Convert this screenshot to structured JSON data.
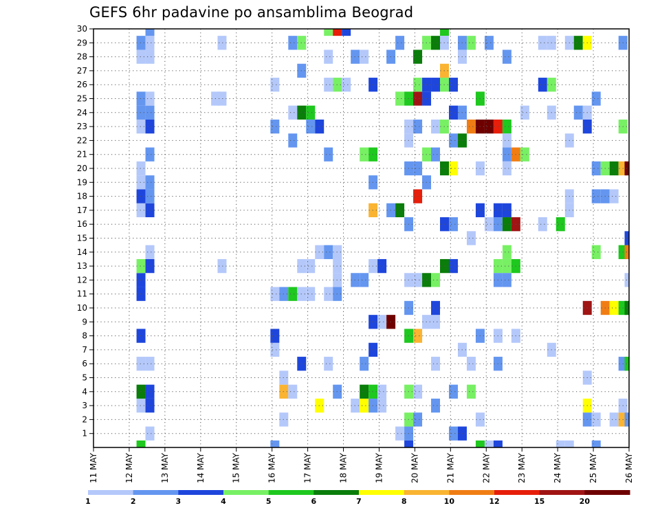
{
  "chart_data": {
    "type": "heatmap",
    "title": "GEFS 6hr padavine po ansamblima Beograd",
    "xlabel": "",
    "ylabel": "",
    "x_ticks": [
      "11 MAY",
      "12 MAY",
      "13 MAY",
      "14 MAY",
      "15 MAY",
      "16 MAY",
      "17 MAY",
      "18 MAY",
      "19 MAY",
      "20 MAY",
      "21 MAY",
      "22 MAY",
      "23 MAY",
      "24 MAY",
      "25 MAY",
      "26 MAY"
    ],
    "xlim": [
      0,
      15
    ],
    "y_ticks": [
      1,
      2,
      3,
      4,
      5,
      6,
      7,
      8,
      9,
      10,
      11,
      12,
      13,
      14,
      15,
      16,
      17,
      18,
      19,
      20,
      21,
      22,
      23,
      24,
      25,
      26,
      27,
      28,
      29,
      30
    ],
    "ylim": [
      0,
      30
    ],
    "grid": true,
    "colorbar": {
      "labels": [
        "1",
        "2",
        "3",
        "4",
        "5",
        "6",
        "7",
        "8",
        "10",
        "12",
        "15",
        "20"
      ],
      "colors": [
        "#b4c8fa",
        "#6496f0",
        "#1e46dc",
        "#78f064",
        "#1ec81e",
        "#0a7d0a",
        "#ffff00",
        "#fab432",
        "#f07d14",
        "#e61e0a",
        "#a01414",
        "#6e0000"
      ]
    },
    "cells_note": "x = forecast time in days from 11 MAY, y = ensemble member row, v = precipitation class index into colorbar",
    "cells": [
      {
        "x": 1.33,
        "y": 0,
        "v": 4
      },
      {
        "x": 1.58,
        "y": 1,
        "v": 0
      },
      {
        "x": 1.33,
        "y": 3,
        "v": 0
      },
      {
        "x": 1.58,
        "y": 3,
        "v": 2
      },
      {
        "x": 1.33,
        "y": 4,
        "v": 5
      },
      {
        "x": 1.58,
        "y": 4,
        "v": 2
      },
      {
        "x": 1.33,
        "y": 6,
        "v": 0
      },
      {
        "x": 1.58,
        "y": 6,
        "v": 0
      },
      {
        "x": 1.33,
        "y": 8,
        "v": 2
      },
      {
        "x": 1.33,
        "y": 11,
        "v": 2
      },
      {
        "x": 1.33,
        "y": 12,
        "v": 2
      },
      {
        "x": 1.33,
        "y": 13,
        "v": 3
      },
      {
        "x": 1.58,
        "y": 13,
        "v": 2
      },
      {
        "x": 1.58,
        "y": 14,
        "v": 0
      },
      {
        "x": 1.33,
        "y": 17,
        "v": 0
      },
      {
        "x": 1.58,
        "y": 17,
        "v": 2
      },
      {
        "x": 1.33,
        "y": 18,
        "v": 2
      },
      {
        "x": 1.58,
        "y": 18,
        "v": 1
      },
      {
        "x": 1.33,
        "y": 19,
        "v": 0
      },
      {
        "x": 1.58,
        "y": 19,
        "v": 1
      },
      {
        "x": 1.33,
        "y": 20,
        "v": 0
      },
      {
        "x": 1.58,
        "y": 21,
        "v": 1
      },
      {
        "x": 1.33,
        "y": 23,
        "v": 0
      },
      {
        "x": 1.58,
        "y": 23,
        "v": 2
      },
      {
        "x": 1.33,
        "y": 24,
        "v": 1
      },
      {
        "x": 1.58,
        "y": 24,
        "v": 1
      },
      {
        "x": 1.33,
        "y": 25,
        "v": 1
      },
      {
        "x": 1.58,
        "y": 25,
        "v": 0
      },
      {
        "x": 1.33,
        "y": 28,
        "v": 0
      },
      {
        "x": 1.58,
        "y": 28,
        "v": 0
      },
      {
        "x": 1.33,
        "y": 29,
        "v": 1
      },
      {
        "x": 1.58,
        "y": 29,
        "v": 0
      },
      {
        "x": 1.58,
        "y": 30,
        "v": 1
      },
      {
        "x": 3.6,
        "y": 13,
        "v": 0
      },
      {
        "x": 3.6,
        "y": 29,
        "v": 0
      },
      {
        "x": 3.42,
        "y": 25,
        "v": 0
      },
      {
        "x": 3.6,
        "y": 25,
        "v": 0
      },
      {
        "x": 5.08,
        "y": 0,
        "v": 1
      },
      {
        "x": 5.08,
        "y": 7,
        "v": 0
      },
      {
        "x": 5.08,
        "y": 8,
        "v": 2
      },
      {
        "x": 5.08,
        "y": 11,
        "v": 0
      },
      {
        "x": 5.33,
        "y": 11,
        "v": 1
      },
      {
        "x": 5.58,
        "y": 11,
        "v": 4
      },
      {
        "x": 5.83,
        "y": 11,
        "v": 0
      },
      {
        "x": 6.08,
        "y": 11,
        "v": 0
      },
      {
        "x": 5.33,
        "y": 2,
        "v": 0
      },
      {
        "x": 5.33,
        "y": 4,
        "v": 7
      },
      {
        "x": 5.58,
        "y": 4,
        "v": 0
      },
      {
        "x": 5.33,
        "y": 5,
        "v": 0
      },
      {
        "x": 5.83,
        "y": 6,
        "v": 2
      },
      {
        "x": 5.08,
        "y": 23,
        "v": 1
      },
      {
        "x": 5.08,
        "y": 26,
        "v": 0
      },
      {
        "x": 5.58,
        "y": 22,
        "v": 1
      },
      {
        "x": 5.58,
        "y": 24,
        "v": 0
      },
      {
        "x": 5.83,
        "y": 24,
        "v": 5
      },
      {
        "x": 6.08,
        "y": 24,
        "v": 4
      },
      {
        "x": 5.58,
        "y": 29,
        "v": 1
      },
      {
        "x": 5.83,
        "y": 29,
        "v": 3
      },
      {
        "x": 5.83,
        "y": 27,
        "v": 1
      },
      {
        "x": 5.83,
        "y": 13,
        "v": 0
      },
      {
        "x": 6.08,
        "y": 13,
        "v": 0
      },
      {
        "x": 6.08,
        "y": 23,
        "v": 1
      },
      {
        "x": 6.33,
        "y": 23,
        "v": 2
      },
      {
        "x": 6.33,
        "y": 3,
        "v": 6
      },
      {
        "x": 6.58,
        "y": 6,
        "v": 0
      },
      {
        "x": 6.58,
        "y": 11,
        "v": 0
      },
      {
        "x": 6.83,
        "y": 11,
        "v": 1
      },
      {
        "x": 6.83,
        "y": 12,
        "v": 0
      },
      {
        "x": 6.83,
        "y": 13,
        "v": 0
      },
      {
        "x": 6.33,
        "y": 14,
        "v": 0
      },
      {
        "x": 6.58,
        "y": 14,
        "v": 1
      },
      {
        "x": 6.83,
        "y": 14,
        "v": 0
      },
      {
        "x": 6.58,
        "y": 21,
        "v": 1
      },
      {
        "x": 6.58,
        "y": 26,
        "v": 0
      },
      {
        "x": 6.83,
        "y": 26,
        "v": 3
      },
      {
        "x": 7.08,
        "y": 26,
        "v": 0
      },
      {
        "x": 6.58,
        "y": 28,
        "v": 0
      },
      {
        "x": 6.58,
        "y": 30,
        "v": 3
      },
      {
        "x": 6.83,
        "y": 30,
        "v": 9
      },
      {
        "x": 7.08,
        "y": 30,
        "v": 2
      },
      {
        "x": 6.83,
        "y": 4,
        "v": 1
      },
      {
        "x": 7.33,
        "y": 28,
        "v": 1
      },
      {
        "x": 7.58,
        "y": 28,
        "v": 0
      },
      {
        "x": 7.33,
        "y": 3,
        "v": 0
      },
      {
        "x": 7.58,
        "y": 3,
        "v": 6
      },
      {
        "x": 7.83,
        "y": 3,
        "v": 1
      },
      {
        "x": 8.08,
        "y": 3,
        "v": 0
      },
      {
        "x": 7.58,
        "y": 4,
        "v": 5
      },
      {
        "x": 7.83,
        "y": 4,
        "v": 4
      },
      {
        "x": 8.08,
        "y": 4,
        "v": 0
      },
      {
        "x": 7.58,
        "y": 6,
        "v": 1
      },
      {
        "x": 7.83,
        "y": 7,
        "v": 2
      },
      {
        "x": 7.83,
        "y": 9,
        "v": 2
      },
      {
        "x": 8.08,
        "y": 9,
        "v": 0
      },
      {
        "x": 7.33,
        "y": 12,
        "v": 1
      },
      {
        "x": 7.58,
        "y": 12,
        "v": 1
      },
      {
        "x": 7.83,
        "y": 13,
        "v": 0
      },
      {
        "x": 8.08,
        "y": 13,
        "v": 2
      },
      {
        "x": 7.83,
        "y": 17,
        "v": 7
      },
      {
        "x": 7.83,
        "y": 19,
        "v": 1
      },
      {
        "x": 7.58,
        "y": 21,
        "v": 3
      },
      {
        "x": 7.83,
        "y": 21,
        "v": 4
      },
      {
        "x": 7.83,
        "y": 26,
        "v": 2
      },
      {
        "x": 8.33,
        "y": 28,
        "v": 1
      },
      {
        "x": 8.58,
        "y": 29,
        "v": 1
      },
      {
        "x": 8.33,
        "y": 9,
        "v": 11
      },
      {
        "x": 8.33,
        "y": 17,
        "v": 1
      },
      {
        "x": 8.58,
        "y": 17,
        "v": 5
      },
      {
        "x": 8.58,
        "y": 1,
        "v": 0
      },
      {
        "x": 8.83,
        "y": 1,
        "v": 1
      },
      {
        "x": 8.83,
        "y": 0,
        "v": 2
      },
      {
        "x": 8.83,
        "y": 2,
        "v": 3
      },
      {
        "x": 9.08,
        "y": 2,
        "v": 1
      },
      {
        "x": 8.83,
        "y": 4,
        "v": 3
      },
      {
        "x": 9.08,
        "y": 4,
        "v": 0
      },
      {
        "x": 8.83,
        "y": 8,
        "v": 4
      },
      {
        "x": 9.08,
        "y": 8,
        "v": 7
      },
      {
        "x": 8.83,
        "y": 10,
        "v": 1
      },
      {
        "x": 8.83,
        "y": 12,
        "v": 0
      },
      {
        "x": 9.08,
        "y": 12,
        "v": 0
      },
      {
        "x": 9.33,
        "y": 12,
        "v": 5
      },
      {
        "x": 9.58,
        "y": 12,
        "v": 3
      },
      {
        "x": 8.83,
        "y": 16,
        "v": 1
      },
      {
        "x": 9.08,
        "y": 18,
        "v": 9
      },
      {
        "x": 9.33,
        "y": 19,
        "v": 1
      },
      {
        "x": 8.83,
        "y": 20,
        "v": 1
      },
      {
        "x": 9.08,
        "y": 20,
        "v": 1
      },
      {
        "x": 8.83,
        "y": 22,
        "v": 0
      },
      {
        "x": 8.83,
        "y": 23,
        "v": 0
      },
      {
        "x": 9.08,
        "y": 23,
        "v": 1
      },
      {
        "x": 8.58,
        "y": 25,
        "v": 3
      },
      {
        "x": 8.83,
        "y": 25,
        "v": 4
      },
      {
        "x": 9.08,
        "y": 25,
        "v": 10
      },
      {
        "x": 9.33,
        "y": 25,
        "v": 2
      },
      {
        "x": 9.08,
        "y": 26,
        "v": 3
      },
      {
        "x": 9.33,
        "y": 26,
        "v": 2
      },
      {
        "x": 9.58,
        "y": 26,
        "v": 2
      },
      {
        "x": 9.08,
        "y": 28,
        "v": 5
      },
      {
        "x": 9.33,
        "y": 29,
        "v": 3
      },
      {
        "x": 9.58,
        "y": 29,
        "v": 5
      },
      {
        "x": 9.33,
        "y": 9,
        "v": 0
      },
      {
        "x": 9.58,
        "y": 9,
        "v": 0
      },
      {
        "x": 9.58,
        "y": 10,
        "v": 2
      },
      {
        "x": 9.58,
        "y": 3,
        "v": 1
      },
      {
        "x": 9.58,
        "y": 6,
        "v": 0
      },
      {
        "x": 9.33,
        "y": 21,
        "v": 3
      },
      {
        "x": 9.58,
        "y": 21,
        "v": 1
      },
      {
        "x": 9.58,
        "y": 23,
        "v": 0
      },
      {
        "x": 9.83,
        "y": 23,
        "v": 3
      },
      {
        "x": 9.83,
        "y": 27,
        "v": 7
      },
      {
        "x": 9.83,
        "y": 26,
        "v": 3
      },
      {
        "x": 9.83,
        "y": 30,
        "v": 4
      },
      {
        "x": 9.83,
        "y": 29,
        "v": 0
      },
      {
        "x": 9.83,
        "y": 20,
        "v": 5
      },
      {
        "x": 10.08,
        "y": 20,
        "v": 6
      },
      {
        "x": 9.83,
        "y": 16,
        "v": 2
      },
      {
        "x": 10.08,
        "y": 16,
        "v": 1
      },
      {
        "x": 9.83,
        "y": 13,
        "v": 5
      },
      {
        "x": 10.08,
        "y": 13,
        "v": 2
      },
      {
        "x": 10.08,
        "y": 1,
        "v": 1
      },
      {
        "x": 10.33,
        "y": 1,
        "v": 2
      },
      {
        "x": 10.08,
        "y": 4,
        "v": 1
      },
      {
        "x": 10.08,
        "y": 22,
        "v": 1
      },
      {
        "x": 10.33,
        "y": 22,
        "v": 5
      },
      {
        "x": 10.08,
        "y": 24,
        "v": 2
      },
      {
        "x": 10.33,
        "y": 24,
        "v": 1
      },
      {
        "x": 10.08,
        "y": 26,
        "v": 2
      },
      {
        "x": 10.33,
        "y": 29,
        "v": 1
      },
      {
        "x": 10.58,
        "y": 29,
        "v": 3
      },
      {
        "x": 10.33,
        "y": 28,
        "v": 0
      },
      {
        "x": 10.33,
        "y": 7,
        "v": 0
      },
      {
        "x": 10.58,
        "y": 15,
        "v": 0
      },
      {
        "x": 10.58,
        "y": 4,
        "v": 3
      },
      {
        "x": 10.58,
        "y": 6,
        "v": 0
      },
      {
        "x": 10.58,
        "y": 23,
        "v": 8
      },
      {
        "x": 10.83,
        "y": 23,
        "v": 11
      },
      {
        "x": 11.08,
        "y": 23,
        "v": 11
      },
      {
        "x": 11.33,
        "y": 23,
        "v": 9
      },
      {
        "x": 11.58,
        "y": 23,
        "v": 4
      },
      {
        "x": 10.83,
        "y": 8,
        "v": 1
      },
      {
        "x": 10.83,
        "y": 17,
        "v": 2
      },
      {
        "x": 10.83,
        "y": 25,
        "v": 4
      },
      {
        "x": 10.83,
        "y": 20,
        "v": 0
      },
      {
        "x": 10.83,
        "y": 2,
        "v": 0
      },
      {
        "x": 10.83,
        "y": 0,
        "v": 4
      },
      {
        "x": 11.08,
        "y": 0,
        "v": 0
      },
      {
        "x": 11.33,
        "y": 0,
        "v": 2
      },
      {
        "x": 11.08,
        "y": 16,
        "v": 0
      },
      {
        "x": 11.33,
        "y": 16,
        "v": 1
      },
      {
        "x": 11.08,
        "y": 29,
        "v": 1
      },
      {
        "x": 11.33,
        "y": 17,
        "v": 2
      },
      {
        "x": 11.58,
        "y": 17,
        "v": 2
      },
      {
        "x": 11.33,
        "y": 13,
        "v": 3
      },
      {
        "x": 11.58,
        "y": 13,
        "v": 3
      },
      {
        "x": 11.83,
        "y": 13,
        "v": 4
      },
      {
        "x": 11.58,
        "y": 14,
        "v": 3
      },
      {
        "x": 11.33,
        "y": 12,
        "v": 1
      },
      {
        "x": 11.58,
        "y": 12,
        "v": 1
      },
      {
        "x": 11.33,
        "y": 8,
        "v": 0
      },
      {
        "x": 11.83,
        "y": 8,
        "v": 0
      },
      {
        "x": 11.33,
        "y": 6,
        "v": 1
      },
      {
        "x": 11.58,
        "y": 16,
        "v": 5
      },
      {
        "x": 11.83,
        "y": 16,
        "v": 10
      },
      {
        "x": 11.58,
        "y": 21,
        "v": 1
      },
      {
        "x": 11.83,
        "y": 21,
        "v": 8
      },
      {
        "x": 12.08,
        "y": 21,
        "v": 3
      },
      {
        "x": 11.58,
        "y": 20,
        "v": 0
      },
      {
        "x": 11.58,
        "y": 28,
        "v": 1
      },
      {
        "x": 11.58,
        "y": 22,
        "v": 0
      },
      {
        "x": 12.08,
        "y": 24,
        "v": 0
      },
      {
        "x": 12.58,
        "y": 26,
        "v": 2
      },
      {
        "x": 12.83,
        "y": 26,
        "v": 3
      },
      {
        "x": 12.58,
        "y": 29,
        "v": 0
      },
      {
        "x": 12.83,
        "y": 29,
        "v": 0
      },
      {
        "x": 12.83,
        "y": 24,
        "v": 0
      },
      {
        "x": 12.58,
        "y": 16,
        "v": 0
      },
      {
        "x": 12.83,
        "y": 7,
        "v": 0
      },
      {
        "x": 13.08,
        "y": 16,
        "v": 4
      },
      {
        "x": 13.08,
        "y": 0,
        "v": 0
      },
      {
        "x": 13.33,
        "y": 0,
        "v": 0
      },
      {
        "x": 13.33,
        "y": 29,
        "v": 0
      },
      {
        "x": 13.58,
        "y": 29,
        "v": 5
      },
      {
        "x": 13.83,
        "y": 29,
        "v": 6
      },
      {
        "x": 13.33,
        "y": 17,
        "v": 0
      },
      {
        "x": 13.33,
        "y": 18,
        "v": 0
      },
      {
        "x": 13.33,
        "y": 22,
        "v": 0
      },
      {
        "x": 13.58,
        "y": 24,
        "v": 1
      },
      {
        "x": 13.83,
        "y": 24,
        "v": 0
      },
      {
        "x": 13.83,
        "y": 23,
        "v": 2
      },
      {
        "x": 13.83,
        "y": 5,
        "v": 0
      },
      {
        "x": 13.83,
        "y": 3,
        "v": 6
      },
      {
        "x": 13.83,
        "y": 2,
        "v": 1
      },
      {
        "x": 14.08,
        "y": 2,
        "v": 0
      },
      {
        "x": 14.58,
        "y": 2,
        "v": 0
      },
      {
        "x": 14.83,
        "y": 2,
        "v": 7
      },
      {
        "x": 13.83,
        "y": 10,
        "v": 10
      },
      {
        "x": 14.08,
        "y": 14,
        "v": 3
      },
      {
        "x": 14.08,
        "y": 18,
        "v": 1
      },
      {
        "x": 14.33,
        "y": 18,
        "v": 1
      },
      {
        "x": 14.58,
        "y": 18,
        "v": 0
      },
      {
        "x": 14.08,
        "y": 20,
        "v": 1
      },
      {
        "x": 14.33,
        "y": 20,
        "v": 3
      },
      {
        "x": 14.58,
        "y": 20,
        "v": 5
      },
      {
        "x": 14.83,
        "y": 20,
        "v": 7
      },
      {
        "x": 15.0,
        "y": 20,
        "v": 11
      },
      {
        "x": 14.08,
        "y": 25,
        "v": 1
      },
      {
        "x": 14.08,
        "y": 0,
        "v": 1
      },
      {
        "x": 14.33,
        "y": 10,
        "v": 8
      },
      {
        "x": 14.58,
        "y": 10,
        "v": 6
      },
      {
        "x": 14.83,
        "y": 10,
        "v": 4
      },
      {
        "x": 15.0,
        "y": 10,
        "v": 5
      },
      {
        "x": 14.83,
        "y": 14,
        "v": 4
      },
      {
        "x": 15.0,
        "y": 14,
        "v": 8
      },
      {
        "x": 15.0,
        "y": 15,
        "v": 2
      },
      {
        "x": 14.83,
        "y": 6,
        "v": 1
      },
      {
        "x": 15.0,
        "y": 6,
        "v": 4
      },
      {
        "x": 14.83,
        "y": 3,
        "v": 0
      },
      {
        "x": 15.0,
        "y": 2,
        "v": 1
      },
      {
        "x": 14.83,
        "y": 23,
        "v": 3
      },
      {
        "x": 14.83,
        "y": 29,
        "v": 1
      },
      {
        "x": 15.0,
        "y": 12,
        "v": 0
      }
    ]
  }
}
